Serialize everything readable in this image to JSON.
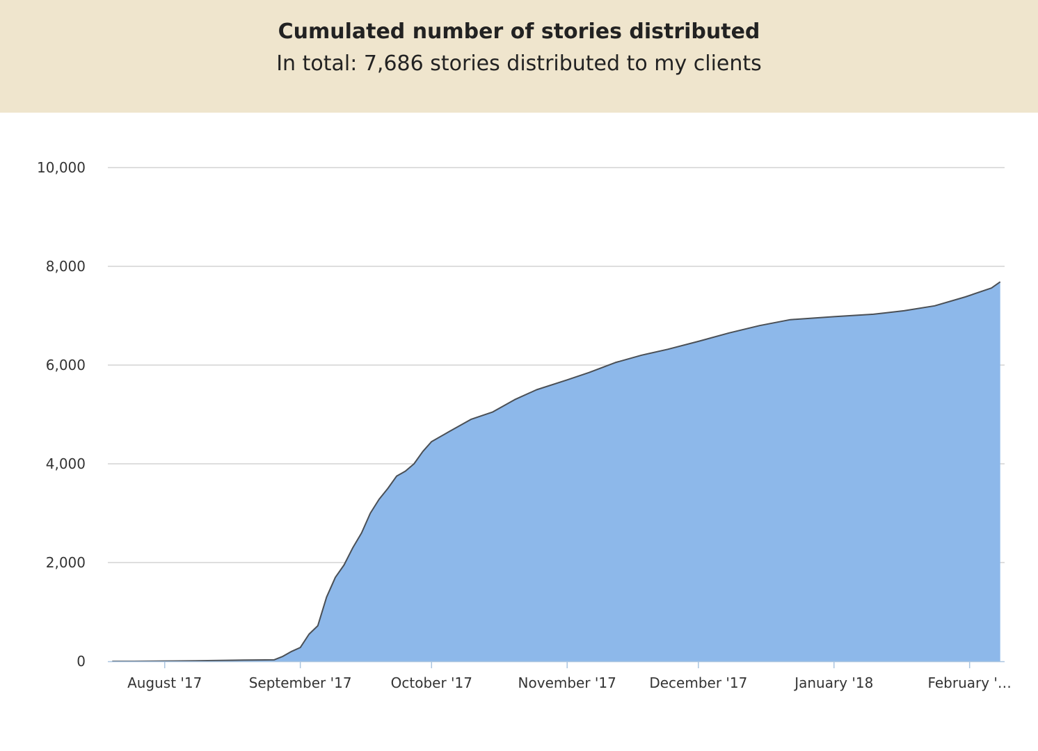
{
  "header": {
    "title": "Cumulated number of stories distributed",
    "subtitle": "In total: 7,686 stories distributed to my clients"
  },
  "colors": {
    "header_background": "#efe5cd",
    "area_fill": "#8db8ea",
    "line": "#4a4f55",
    "grid": "#d3d3d3",
    "axis": "#aac5e0"
  },
  "chart_data": {
    "type": "area",
    "title": "Cumulated number of stories distributed",
    "subtitle": "In total: 7,686 stories distributed to my clients",
    "xlabel": "",
    "ylabel": "",
    "x_axis_type": "datetime",
    "x_range": [
      "2017-07-19",
      "2018-02-09"
    ],
    "ylim": [
      0,
      10000
    ],
    "y_ticks": [
      0,
      2000,
      4000,
      6000,
      8000,
      10000
    ],
    "y_tick_labels": [
      "0",
      "2,000",
      "4,000",
      "6,000",
      "8,000",
      "10,000"
    ],
    "x_ticks": [
      "2017-08-01",
      "2017-09-01",
      "2017-10-01",
      "2017-11-01",
      "2017-12-01",
      "2018-01-01",
      "2018-02-01"
    ],
    "x_tick_labels": [
      "August '17",
      "September '17",
      "October '17",
      "November '17",
      "December '17",
      "January '18",
      "February '…"
    ],
    "grid": true,
    "legend": "none",
    "series": [
      {
        "x": [
          "2017-07-20",
          "2017-07-25",
          "2017-08-01",
          "2017-08-08",
          "2017-08-15",
          "2017-08-19",
          "2017-08-26",
          "2017-08-28",
          "2017-08-30",
          "2017-09-01",
          "2017-09-03",
          "2017-09-05",
          "2017-09-07",
          "2017-09-09",
          "2017-09-11",
          "2017-09-13",
          "2017-09-15",
          "2017-09-17",
          "2017-09-19",
          "2017-09-21",
          "2017-09-23",
          "2017-09-25",
          "2017-09-27",
          "2017-09-29",
          "2017-10-01",
          "2017-10-05",
          "2017-10-10",
          "2017-10-15",
          "2017-10-20",
          "2017-10-25",
          "2017-11-01",
          "2017-11-06",
          "2017-11-12",
          "2017-11-18",
          "2017-11-24",
          "2017-12-01",
          "2017-12-08",
          "2017-12-15",
          "2017-12-22",
          "2018-01-01",
          "2018-01-10",
          "2018-01-17",
          "2018-01-24",
          "2018-01-31",
          "2018-02-06",
          "2018-02-08"
        ],
        "values": [
          0,
          0,
          5,
          10,
          20,
          25,
          30,
          100,
          200,
          280,
          550,
          720,
          1300,
          1700,
          1950,
          2300,
          2600,
          3000,
          3280,
          3500,
          3750,
          3850,
          4000,
          4250,
          4450,
          4650,
          4900,
          5050,
          5300,
          5500,
          5700,
          5850,
          6050,
          6200,
          6320,
          6480,
          6650,
          6800,
          6920,
          6980,
          7030,
          7100,
          7200,
          7380,
          7560,
          7686
        ]
      }
    ]
  }
}
